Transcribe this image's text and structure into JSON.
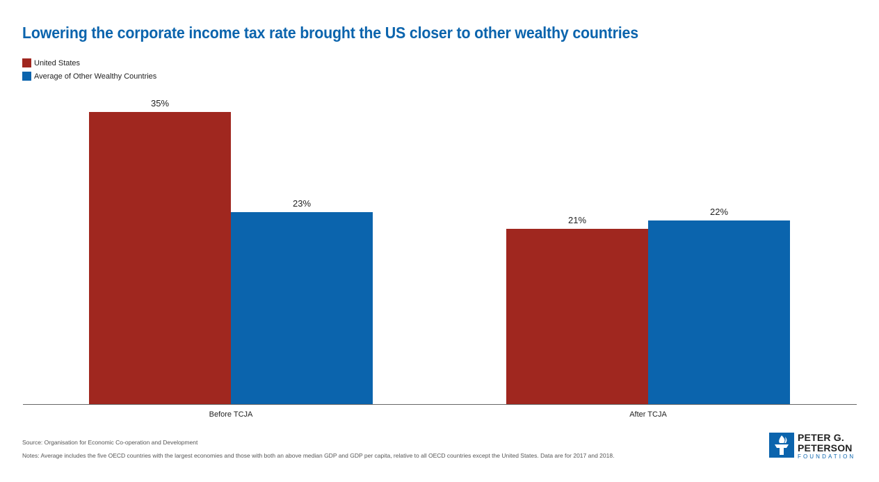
{
  "chart_data": {
    "type": "bar",
    "title": "Lowering the corporate income tax rate brought the US closer to other wealthy countries",
    "categories": [
      "Before TCJA",
      "After TCJA"
    ],
    "series": [
      {
        "name": "United States",
        "color": "#a0271f",
        "values": [
          35,
          21
        ],
        "labels": [
          "35%",
          "21%"
        ]
      },
      {
        "name": "Average of Other Wealthy Countries",
        "color": "#0b64ad",
        "values": [
          23,
          22
        ],
        "labels": [
          "23%",
          "22%"
        ]
      }
    ],
    "ylim": [
      0,
      35
    ],
    "grid": false,
    "legend_position": "top-left",
    "xlabel": "",
    "ylabel": ""
  },
  "footer": {
    "source": "Source: Organisation for Economic Co-operation and Development",
    "notes": "Notes: Average includes the five OECD countries with the largest economies and those with both an above median GDP and GDP per capita, relative to all OECD countries except the United States. Data are for 2017 and 2018."
  },
  "logo": {
    "line1": "PETER G.",
    "line2": "PETERSON",
    "line3": "FOUNDATION",
    "icon": "torch-icon"
  }
}
